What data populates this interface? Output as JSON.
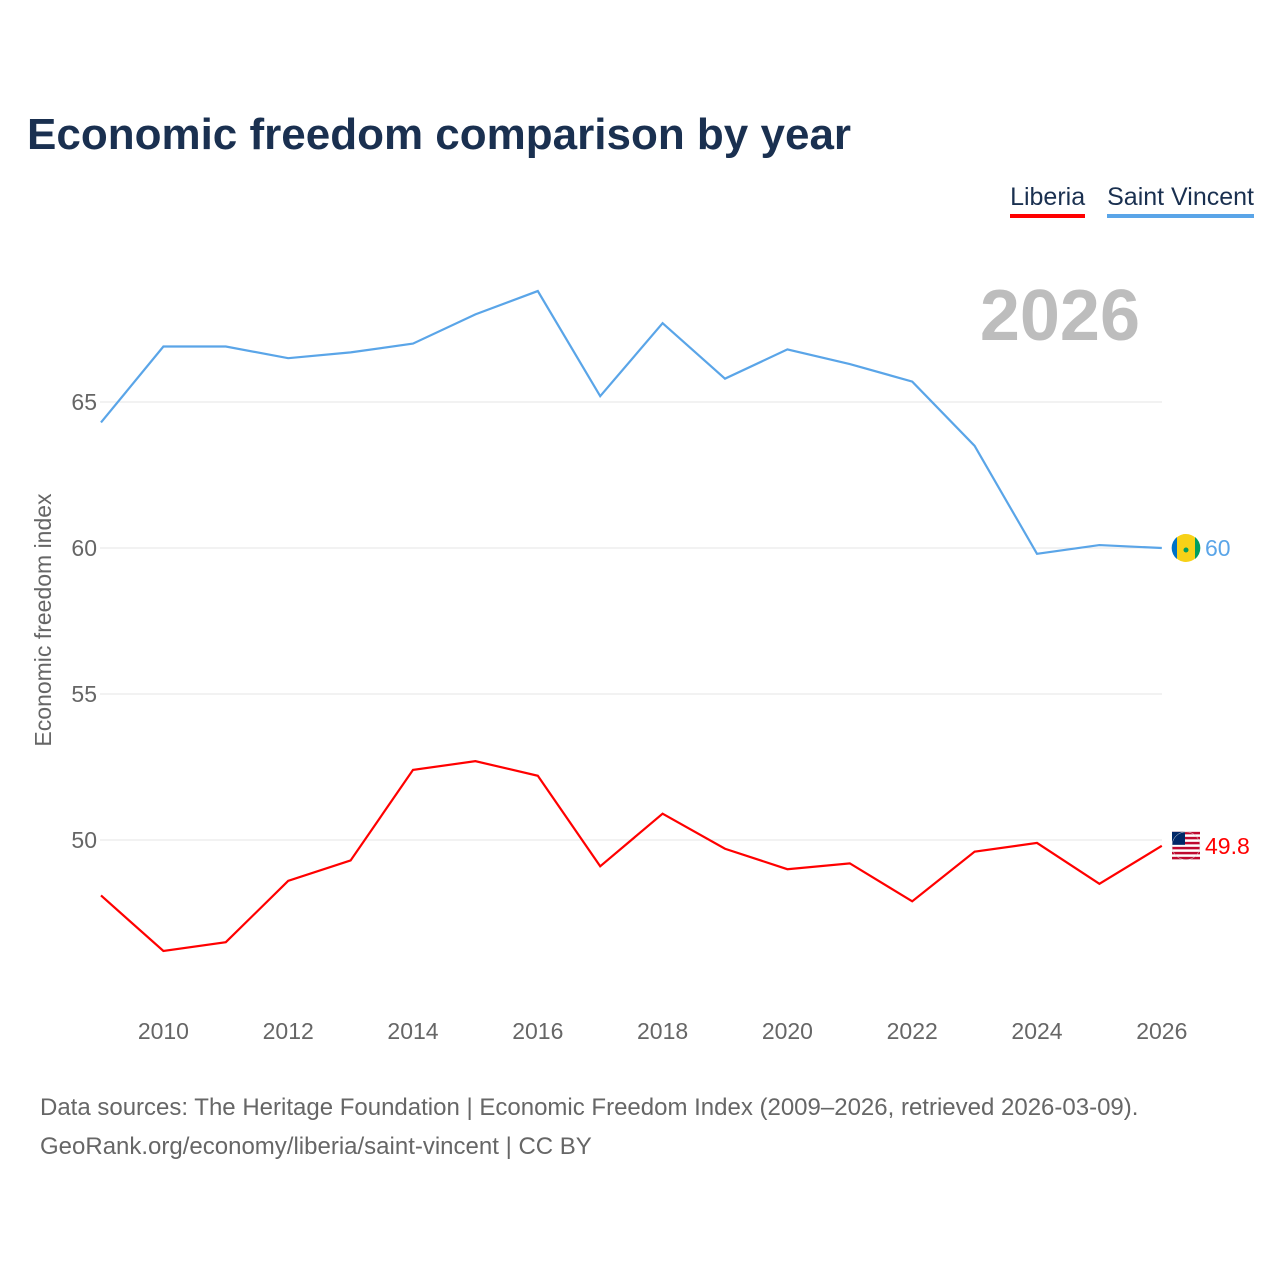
{
  "title": "Economic freedom comparison by year",
  "legend": [
    {
      "label": "Liberia",
      "color": "#ff0000"
    },
    {
      "label": "Saint Vincent",
      "color": "#5aa5e8"
    }
  ],
  "year_watermark": "2026",
  "source_line1": "Data sources: The Heritage Foundation | Economic Freedom Index (2009–2026, retrieved 2026-03-09).",
  "source_line2": "GeoRank.org/economy/liberia/saint-vincent | CC BY",
  "chart_data": {
    "type": "line",
    "title": "Economic freedom comparison by year",
    "xlabel": "",
    "ylabel": "Economic freedom index",
    "x": [
      2009,
      2010,
      2011,
      2012,
      2013,
      2014,
      2015,
      2016,
      2017,
      2018,
      2019,
      2020,
      2021,
      2022,
      2023,
      2024,
      2025,
      2026
    ],
    "xticks": [
      "2010",
      "2012",
      "2014",
      "2016",
      "2018",
      "2020",
      "2022",
      "2024",
      "2026"
    ],
    "yticks": [
      "50",
      "55",
      "60",
      "65"
    ],
    "xlim": [
      2009,
      2026
    ],
    "ylim": [
      46,
      69
    ],
    "grid": true,
    "legend_position": "top-right",
    "series": [
      {
        "name": "Liberia",
        "color": "#ff0000",
        "end_label": "49.8",
        "values": [
          48.1,
          46.2,
          46.5,
          48.6,
          49.3,
          52.4,
          52.7,
          52.2,
          49.1,
          50.9,
          49.7,
          49.0,
          49.2,
          47.9,
          49.6,
          49.9,
          48.5,
          49.8
        ]
      },
      {
        "name": "Saint Vincent",
        "color": "#5aa5e8",
        "end_label": "60",
        "values": [
          64.3,
          66.9,
          66.9,
          66.5,
          66.7,
          67.0,
          68.0,
          68.8,
          65.2,
          67.7,
          65.8,
          66.8,
          66.3,
          65.7,
          63.5,
          59.8,
          60.1,
          60.0
        ]
      }
    ]
  }
}
